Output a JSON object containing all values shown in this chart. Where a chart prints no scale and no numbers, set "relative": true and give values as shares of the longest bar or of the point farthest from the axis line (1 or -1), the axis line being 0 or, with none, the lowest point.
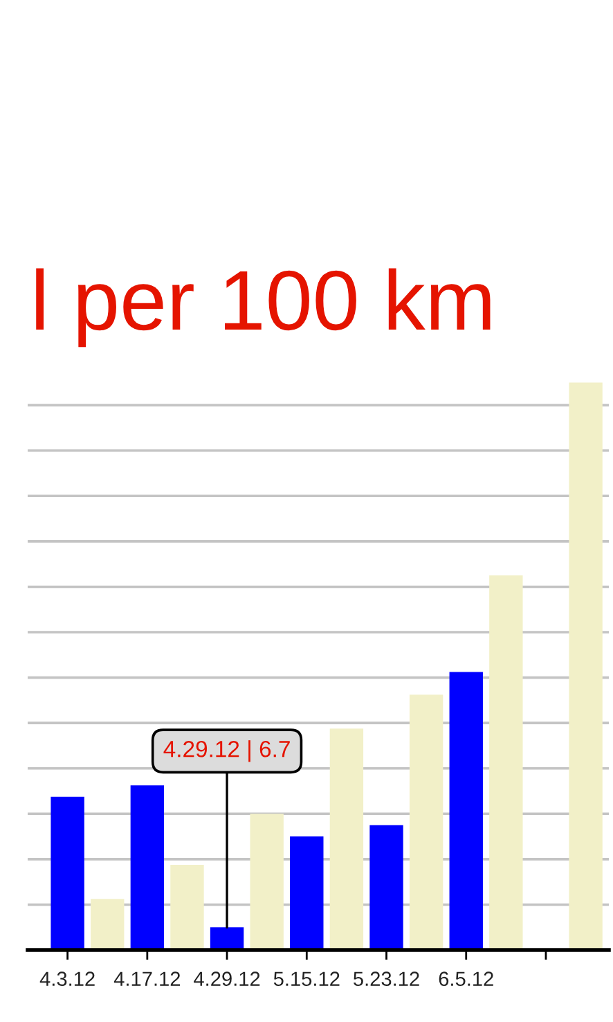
{
  "chart_data": {
    "type": "bar",
    "title": "l per 100 km",
    "categories": [
      "4.3.12",
      "4.17.12",
      "4.29.12",
      "5.15.12",
      "5.23.12",
      "6.5.12",
      null
    ],
    "relative": true,
    "grid": "y",
    "series": [
      {
        "color": "#0000ff",
        "values": [
          0.27,
          0.29,
          0.04,
          0.2,
          0.22,
          0.49,
          null
        ]
      },
      {
        "color": "#f2f0c8",
        "values": [
          0.09,
          0.15,
          0.24,
          0.39,
          0.45,
          0.66,
          1
        ]
      }
    ],
    "annotations": [
      {
        "text": "4.29.12 | 6.7",
        "x": "4.29.12",
        "y": 0.04
      }
    ]
  }
}
